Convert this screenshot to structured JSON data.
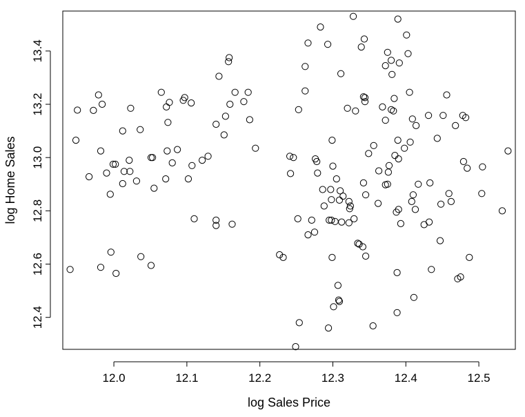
{
  "chart_data": {
    "type": "scatter",
    "title": "",
    "xlabel": "log Sales Price",
    "ylabel": "log Home Sales",
    "xlim": [
      11.93,
      12.55
    ],
    "ylim": [
      12.28,
      13.55
    ],
    "xticks": [
      "12.0",
      "12.1",
      "12.2",
      "12.3",
      "12.4",
      "12.5"
    ],
    "yticks": [
      "12.4",
      "12.6",
      "12.8",
      "13.0",
      "13.2",
      "13.4"
    ],
    "grid": false,
    "marker": "open-circle",
    "colors": {
      "marker_stroke": "#000000",
      "axis": "#000000",
      "background": "#ffffff"
    },
    "points": [
      [
        11.94,
        12.58
      ],
      [
        11.948,
        13.065
      ],
      [
        11.95,
        13.178
      ],
      [
        11.966,
        12.928
      ],
      [
        11.972,
        13.177
      ],
      [
        11.979,
        13.235
      ],
      [
        11.982,
        12.588
      ],
      [
        11.982,
        13.025
      ],
      [
        11.984,
        13.2
      ],
      [
        11.99,
        12.942
      ],
      [
        11.995,
        12.862
      ],
      [
        11.996,
        12.645
      ],
      [
        11.999,
        12.975
      ],
      [
        12.002,
        12.975
      ],
      [
        12.003,
        12.565
      ],
      [
        12.012,
        12.902
      ],
      [
        12.012,
        13.1
      ],
      [
        12.014,
        12.948
      ],
      [
        12.021,
        12.99
      ],
      [
        12.022,
        12.948
      ],
      [
        12.023,
        13.185
      ],
      [
        12.031,
        12.912
      ],
      [
        12.036,
        13.105
      ],
      [
        12.037,
        12.628
      ],
      [
        12.051,
        12.595
      ],
      [
        12.051,
        13.0
      ],
      [
        12.053,
        13.0
      ],
      [
        12.055,
        12.885
      ],
      [
        12.065,
        13.245
      ],
      [
        12.071,
        12.92
      ],
      [
        12.072,
        13.19
      ],
      [
        12.073,
        13.025
      ],
      [
        12.074,
        13.132
      ],
      [
        12.076,
        13.207
      ],
      [
        12.08,
        12.98
      ],
      [
        12.087,
        13.03
      ],
      [
        12.095,
        13.215
      ],
      [
        12.097,
        13.225
      ],
      [
        12.102,
        12.92
      ],
      [
        12.106,
        13.205
      ],
      [
        12.107,
        12.97
      ],
      [
        12.11,
        12.77
      ],
      [
        12.121,
        12.99
      ],
      [
        12.129,
        13.005
      ],
      [
        12.14,
        12.765
      ],
      [
        12.14,
        12.745
      ],
      [
        12.14,
        13.125
      ],
      [
        12.144,
        13.305
      ],
      [
        12.151,
        13.085
      ],
      [
        12.153,
        13.155
      ],
      [
        12.157,
        13.36
      ],
      [
        12.158,
        13.375
      ],
      [
        12.159,
        13.2
      ],
      [
        12.162,
        12.75
      ],
      [
        12.166,
        13.245
      ],
      [
        12.178,
        13.21
      ],
      [
        12.184,
        13.245
      ],
      [
        12.186,
        13.142
      ],
      [
        12.194,
        13.035
      ],
      [
        12.227,
        12.635
      ],
      [
        12.232,
        12.625
      ],
      [
        12.241,
        13.005
      ],
      [
        12.242,
        12.94
      ],
      [
        12.246,
        13.0
      ],
      [
        12.249,
        12.29
      ],
      [
        12.252,
        12.77
      ],
      [
        12.253,
        13.18
      ],
      [
        12.254,
        12.38
      ],
      [
        12.262,
        13.342
      ],
      [
        12.262,
        13.25
      ],
      [
        12.266,
        13.43
      ],
      [
        12.266,
        12.71
      ],
      [
        12.271,
        12.765
      ],
      [
        12.275,
        12.72
      ],
      [
        12.276,
        12.995
      ],
      [
        12.278,
        12.985
      ],
      [
        12.279,
        12.942
      ],
      [
        12.283,
        13.49
      ],
      [
        12.286,
        12.88
      ],
      [
        12.288,
        12.818
      ],
      [
        12.293,
        13.425
      ],
      [
        12.294,
        12.36
      ],
      [
        12.295,
        12.765
      ],
      [
        12.297,
        12.88
      ],
      [
        12.298,
        12.765
      ],
      [
        12.298,
        12.842
      ],
      [
        12.299,
        13.065
      ],
      [
        12.299,
        12.625
      ],
      [
        12.3,
        12.968
      ],
      [
        12.301,
        12.44
      ],
      [
        12.303,
        12.76
      ],
      [
        12.305,
        12.92
      ],
      [
        12.307,
        12.52
      ],
      [
        12.308,
        12.465
      ],
      [
        12.309,
        12.84
      ],
      [
        12.309,
        12.46
      ],
      [
        12.31,
        12.875
      ],
      [
        12.311,
        13.315
      ],
      [
        12.312,
        12.758
      ],
      [
        12.314,
        12.855
      ],
      [
        12.32,
        13.185
      ],
      [
        12.322,
        12.755
      ],
      [
        12.322,
        12.835
      ],
      [
        12.323,
        12.808
      ],
      [
        12.324,
        12.818
      ],
      [
        12.328,
        13.53
      ],
      [
        12.329,
        12.77
      ],
      [
        12.331,
        13.175
      ],
      [
        12.334,
        12.678
      ],
      [
        12.336,
        12.675
      ],
      [
        12.339,
        13.415
      ],
      [
        12.341,
        12.665
      ],
      [
        12.342,
        13.228
      ],
      [
        12.342,
        12.905
      ],
      [
        12.343,
        13.445
      ],
      [
        12.344,
        13.21
      ],
      [
        12.344,
        13.225
      ],
      [
        12.345,
        12.63
      ],
      [
        12.345,
        12.86
      ],
      [
        12.349,
        13.015
      ],
      [
        12.355,
        12.368
      ],
      [
        12.356,
        13.045
      ],
      [
        12.362,
        12.828
      ],
      [
        12.363,
        12.95
      ],
      [
        12.368,
        13.19
      ],
      [
        12.372,
        12.898
      ],
      [
        12.372,
        13.345
      ],
      [
        12.372,
        13.14
      ],
      [
        12.375,
        13.395
      ],
      [
        12.375,
        12.9
      ],
      [
        12.376,
        12.945
      ],
      [
        12.377,
        12.97
      ],
      [
        12.38,
        13.18
      ],
      [
        12.38,
        13.365
      ],
      [
        12.381,
        13.312
      ],
      [
        12.383,
        13.175
      ],
      [
        12.384,
        13.222
      ],
      [
        12.385,
        13.008
      ],
      [
        12.387,
        12.795
      ],
      [
        12.388,
        12.568
      ],
      [
        12.388,
        12.418
      ],
      [
        12.389,
        13.52
      ],
      [
        12.389,
        13.065
      ],
      [
        12.39,
        12.805
      ],
      [
        12.39,
        12.995
      ],
      [
        12.391,
        13.355
      ],
      [
        12.393,
        12.752
      ],
      [
        12.398,
        13.035
      ],
      [
        12.401,
        13.46
      ],
      [
        12.403,
        13.39
      ],
      [
        12.405,
        13.245
      ],
      [
        12.406,
        13.058
      ],
      [
        12.408,
        12.835
      ],
      [
        12.409,
        13.145
      ],
      [
        12.41,
        12.86
      ],
      [
        12.411,
        12.475
      ],
      [
        12.413,
        12.805
      ],
      [
        12.414,
        13.12
      ],
      [
        12.417,
        12.9
      ],
      [
        12.425,
        12.748
      ],
      [
        12.431,
        13.158
      ],
      [
        12.432,
        12.758
      ],
      [
        12.433,
        12.905
      ],
      [
        12.435,
        12.58
      ],
      [
        12.443,
        13.072
      ],
      [
        12.447,
        12.688
      ],
      [
        12.448,
        12.825
      ],
      [
        12.451,
        13.158
      ],
      [
        12.456,
        13.235
      ],
      [
        12.459,
        12.865
      ],
      [
        12.462,
        12.835
      ],
      [
        12.468,
        13.12
      ],
      [
        12.471,
        12.545
      ],
      [
        12.475,
        12.552
      ],
      [
        12.478,
        13.158
      ],
      [
        12.479,
        12.985
      ],
      [
        12.482,
        13.15
      ],
      [
        12.484,
        12.96
      ],
      [
        12.487,
        12.625
      ],
      [
        12.504,
        12.865
      ],
      [
        12.505,
        12.965
      ],
      [
        12.532,
        12.8
      ],
      [
        12.54,
        13.025
      ]
    ]
  }
}
